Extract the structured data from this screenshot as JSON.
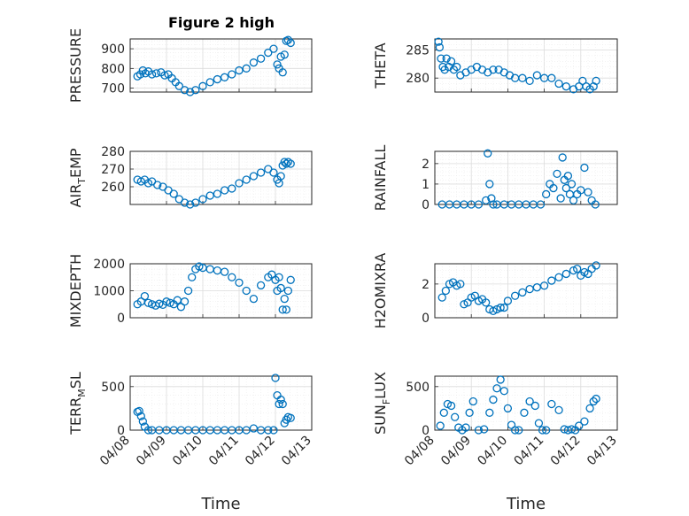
{
  "chart_data": {
    "type": "scatter",
    "title": "Figure 2 high",
    "marker_color": "#0072BD",
    "marker": "open-circle",
    "grid": true,
    "x_axis": {
      "label": "Time",
      "ticks": [
        "04/08",
        "04/09",
        "04/10",
        "04/11",
        "04/12",
        "04/13"
      ],
      "range_days": [
        0,
        5
      ]
    },
    "subplots": [
      {
        "id": "pressure",
        "ylabel": "PRESSURE",
        "ylim": [
          680,
          950
        ],
        "yticks": [
          700,
          800,
          900
        ],
        "show_x_ticklabels": false,
        "x": [
          0.2,
          0.28,
          0.35,
          0.42,
          0.5,
          0.6,
          0.72,
          0.85,
          0.95,
          1.05,
          1.15,
          1.25,
          1.35,
          1.5,
          1.65,
          1.8,
          2.0,
          2.2,
          2.4,
          2.6,
          2.8,
          3.0,
          3.2,
          3.4,
          3.6,
          3.8,
          3.95,
          4.05,
          4.1,
          4.15,
          4.2,
          4.25,
          4.3,
          4.35,
          4.42
        ],
        "y": [
          760,
          770,
          790,
          775,
          785,
          770,
          775,
          780,
          765,
          770,
          750,
          730,
          710,
          690,
          680,
          690,
          710,
          730,
          745,
          755,
          770,
          790,
          800,
          830,
          850,
          880,
          900,
          820,
          800,
          860,
          780,
          870,
          940,
          945,
          930
        ]
      },
      {
        "id": "theta",
        "ylabel": "THETA",
        "ylim": [
          277.5,
          287
        ],
        "yticks": [
          280,
          285
        ],
        "show_x_ticklabels": false,
        "x": [
          0.1,
          0.13,
          0.17,
          0.22,
          0.27,
          0.32,
          0.38,
          0.45,
          0.52,
          0.6,
          0.7,
          0.85,
          1.0,
          1.15,
          1.3,
          1.45,
          1.6,
          1.75,
          1.9,
          2.05,
          2.2,
          2.4,
          2.6,
          2.8,
          3.0,
          3.2,
          3.4,
          3.6,
          3.8,
          3.95,
          4.05,
          4.15,
          4.25,
          4.35,
          4.42
        ],
        "y": [
          286.5,
          285.5,
          283.5,
          282.0,
          281.5,
          283.5,
          282.0,
          283.0,
          281.5,
          282.0,
          280.5,
          281.0,
          281.5,
          282.0,
          281.5,
          281.0,
          281.5,
          281.5,
          281.0,
          280.5,
          280.0,
          280.0,
          279.5,
          280.5,
          280.0,
          280.0,
          279.0,
          278.5,
          278.0,
          278.5,
          279.5,
          278.5,
          278.0,
          278.5,
          279.5
        ]
      },
      {
        "id": "air_temp",
        "ylabel": "AIR_TEMP",
        "ylim": [
          250,
          280
        ],
        "yticks": [
          260,
          270,
          280
        ],
        "show_x_ticklabels": false,
        "x": [
          0.2,
          0.3,
          0.4,
          0.5,
          0.6,
          0.75,
          0.9,
          1.05,
          1.2,
          1.35,
          1.5,
          1.65,
          1.8,
          2.0,
          2.2,
          2.4,
          2.6,
          2.8,
          3.0,
          3.2,
          3.4,
          3.6,
          3.8,
          3.95,
          4.05,
          4.1,
          4.15,
          4.2,
          4.25,
          4.3,
          4.35,
          4.42
        ],
        "y": [
          264,
          263,
          264,
          262,
          263,
          261,
          260,
          258,
          256,
          253,
          251,
          250,
          251,
          253,
          255,
          256,
          258,
          259,
          262,
          264,
          266,
          268,
          270,
          268,
          264,
          262,
          266,
          272,
          274,
          273,
          274,
          273
        ]
      },
      {
        "id": "rainfall",
        "ylabel": "RAINFALL",
        "ylim": [
          0,
          2.6
        ],
        "yticks": [
          0,
          1,
          2
        ],
        "show_x_ticklabels": false,
        "x": [
          0.2,
          0.4,
          0.6,
          0.8,
          1.0,
          1.2,
          1.4,
          1.45,
          1.5,
          1.55,
          1.6,
          1.7,
          1.9,
          2.1,
          2.3,
          2.5,
          2.7,
          2.9,
          3.05,
          3.15,
          3.25,
          3.35,
          3.45,
          3.5,
          3.55,
          3.6,
          3.65,
          3.7,
          3.75,
          3.8,
          3.9,
          4.0,
          4.1,
          4.2,
          4.3,
          4.4
        ],
        "y": [
          0,
          0,
          0,
          0,
          0,
          0,
          0.2,
          2.5,
          1.0,
          0.3,
          0,
          0,
          0,
          0,
          0,
          0,
          0,
          0,
          0.5,
          1.0,
          0.8,
          1.5,
          0.3,
          2.3,
          1.2,
          0.8,
          1.4,
          0.5,
          1.0,
          0.2,
          0.5,
          0.7,
          1.8,
          0.6,
          0.2,
          0
        ]
      },
      {
        "id": "mixdepth",
        "ylabel": "MIXDEPTH",
        "ylim": [
          0,
          2000
        ],
        "yticks": [
          0,
          1000,
          2000
        ],
        "show_x_ticklabels": false,
        "x": [
          0.2,
          0.3,
          0.4,
          0.5,
          0.6,
          0.7,
          0.8,
          0.9,
          1.0,
          1.1,
          1.2,
          1.3,
          1.4,
          1.5,
          1.6,
          1.7,
          1.8,
          1.9,
          2.0,
          2.2,
          2.4,
          2.6,
          2.8,
          3.0,
          3.2,
          3.4,
          3.6,
          3.8,
          3.9,
          4.0,
          4.05,
          4.1,
          4.15,
          4.2,
          4.25,
          4.3,
          4.35,
          4.42
        ],
        "y": [
          500,
          600,
          800,
          550,
          500,
          450,
          520,
          480,
          600,
          550,
          500,
          650,
          400,
          600,
          1000,
          1500,
          1800,
          1900,
          1850,
          1800,
          1750,
          1700,
          1500,
          1300,
          1000,
          700,
          1200,
          1500,
          1600,
          1400,
          1000,
          1500,
          1100,
          300,
          700,
          300,
          1000,
          1400
        ]
      },
      {
        "id": "h2omixra",
        "ylabel": "H2OMIXRA",
        "ylim": [
          0,
          3.2
        ],
        "yticks": [
          0,
          2
        ],
        "show_x_ticklabels": false,
        "x": [
          0.2,
          0.3,
          0.4,
          0.5,
          0.6,
          0.7,
          0.8,
          0.9,
          1.0,
          1.1,
          1.2,
          1.3,
          1.4,
          1.5,
          1.6,
          1.7,
          1.8,
          1.9,
          2.0,
          2.2,
          2.4,
          2.6,
          2.8,
          3.0,
          3.2,
          3.4,
          3.6,
          3.8,
          3.9,
          4.0,
          4.1,
          4.2,
          4.3,
          4.42
        ],
        "y": [
          1.2,
          1.6,
          2.0,
          2.1,
          1.9,
          2.0,
          0.8,
          0.9,
          1.2,
          1.3,
          1.0,
          1.1,
          0.9,
          0.5,
          0.4,
          0.5,
          0.6,
          0.6,
          1.0,
          1.3,
          1.5,
          1.7,
          1.8,
          1.9,
          2.2,
          2.4,
          2.6,
          2.8,
          2.9,
          2.5,
          2.7,
          2.6,
          2.9,
          3.1
        ]
      },
      {
        "id": "terr_msl",
        "ylabel": "TERR_MSL",
        "ylim": [
          0,
          620
        ],
        "yticks": [
          0,
          500
        ],
        "show_x_ticklabels": true,
        "x": [
          0.2,
          0.25,
          0.3,
          0.35,
          0.4,
          0.5,
          0.6,
          0.8,
          1.0,
          1.2,
          1.4,
          1.6,
          1.8,
          2.0,
          2.2,
          2.4,
          2.6,
          2.8,
          3.0,
          3.2,
          3.4,
          3.6,
          3.8,
          3.95,
          4.0,
          4.05,
          4.1,
          4.15,
          4.2,
          4.25,
          4.3,
          4.35,
          4.42
        ],
        "y": [
          210,
          220,
          160,
          100,
          40,
          0,
          0,
          0,
          0,
          0,
          0,
          0,
          0,
          0,
          0,
          0,
          0,
          0,
          0,
          0,
          20,
          0,
          0,
          0,
          600,
          400,
          300,
          350,
          300,
          80,
          120,
          150,
          140
        ]
      },
      {
        "id": "sun_flux",
        "ylabel": "SUN_FLUX",
        "ylim": [
          0,
          620
        ],
        "yticks": [
          0,
          500
        ],
        "show_x_ticklabels": true,
        "x": [
          0.15,
          0.25,
          0.35,
          0.45,
          0.55,
          0.65,
          0.75,
          0.85,
          0.95,
          1.05,
          1.2,
          1.35,
          1.5,
          1.6,
          1.7,
          1.8,
          1.9,
          2.0,
          2.1,
          2.2,
          2.3,
          2.45,
          2.6,
          2.75,
          2.85,
          2.95,
          3.05,
          3.2,
          3.4,
          3.55,
          3.65,
          3.75,
          3.85,
          3.95,
          4.1,
          4.25,
          4.35,
          4.42
        ],
        "y": [
          50,
          200,
          300,
          280,
          150,
          30,
          0,
          30,
          200,
          330,
          0,
          10,
          200,
          350,
          480,
          580,
          450,
          250,
          60,
          0,
          0,
          200,
          330,
          280,
          80,
          0,
          0,
          300,
          230,
          10,
          0,
          10,
          0,
          50,
          100,
          250,
          330,
          360
        ]
      }
    ]
  }
}
